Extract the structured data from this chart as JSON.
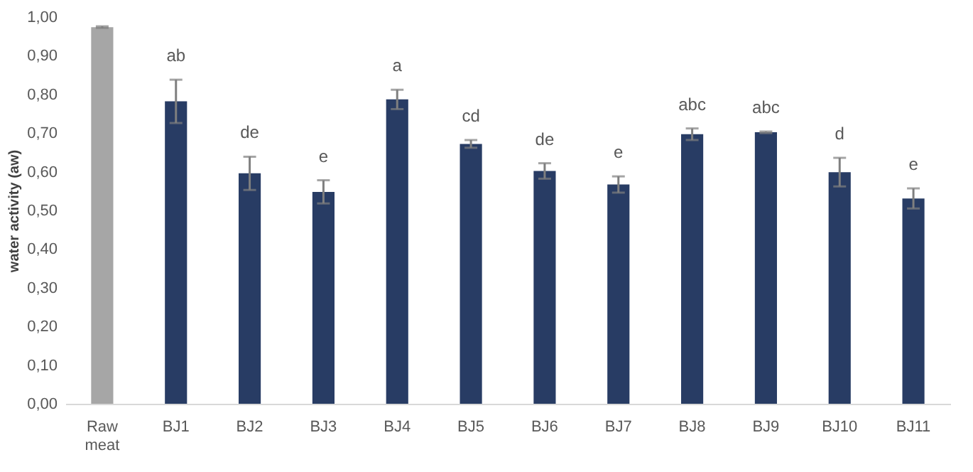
{
  "chart_data": {
    "type": "bar",
    "ylabel": "water activity (aw)",
    "categories": [
      "Raw meat",
      "BJ1",
      "BJ2",
      "BJ3",
      "BJ4",
      "BJ5",
      "BJ6",
      "BJ7",
      "BJ8",
      "BJ9",
      "BJ10",
      "BJ11"
    ],
    "values": [
      0.974,
      0.782,
      0.596,
      0.548,
      0.787,
      0.672,
      0.602,
      0.567,
      0.697,
      0.702,
      0.599,
      0.531
    ],
    "errors": [
      0.002,
      0.056,
      0.043,
      0.03,
      0.025,
      0.01,
      0.02,
      0.021,
      0.015,
      0.002,
      0.037,
      0.026
    ],
    "colors": [
      "#a6a6a6",
      "#283c64",
      "#283c64",
      "#283c64",
      "#283c64",
      "#283c64",
      "#283c64",
      "#283c64",
      "#283c64",
      "#283c64",
      "#283c64",
      "#283c64"
    ],
    "ylim": [
      0,
      1
    ],
    "yticks": [
      {
        "value": 0,
        "label": "0,00"
      },
      {
        "value": 0.1,
        "label": "0,10"
      },
      {
        "value": 0.2,
        "label": "0,20"
      },
      {
        "value": 0.3,
        "label": "0,30"
      },
      {
        "value": 0.4,
        "label": "0,40"
      },
      {
        "value": 0.5,
        "label": "0,50"
      },
      {
        "value": 0.6,
        "label": "0,60"
      },
      {
        "value": 0.7,
        "label": "0,70"
      },
      {
        "value": 0.8,
        "label": "0,80"
      },
      {
        "value": 0.9,
        "label": "0,90"
      },
      {
        "value": 1,
        "label": "1,00"
      }
    ],
    "grid": false,
    "annotations": [
      {
        "text": "ab",
        "x": "BJ1",
        "y": 0.838
      },
      {
        "text": "de",
        "x": "BJ2",
        "y": 0.639
      },
      {
        "text": "e",
        "x": "BJ3",
        "y": 0.578
      },
      {
        "text": "a",
        "x": "BJ4",
        "y": 0.812
      },
      {
        "text": "cd",
        "x": "BJ5",
        "y": 0.682
      },
      {
        "text": "de",
        "x": "BJ6",
        "y": 0.622
      },
      {
        "text": "e",
        "x": "BJ7",
        "y": 0.588
      },
      {
        "text": "abc",
        "x": "BJ8",
        "y": 0.712
      },
      {
        "text": "abc",
        "x": "BJ9",
        "y": 0.704
      },
      {
        "text": "d",
        "x": "BJ10",
        "y": 0.636
      },
      {
        "text": "e",
        "x": "BJ11",
        "y": 0.557
      }
    ]
  }
}
